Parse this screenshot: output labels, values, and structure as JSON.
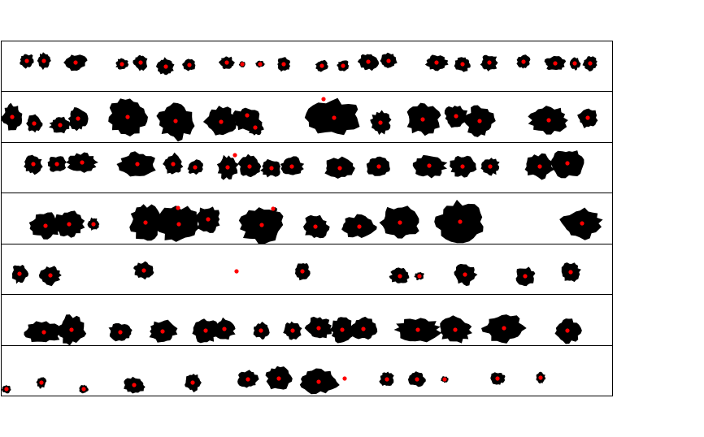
{
  "colors": {
    "blob": "#000000",
    "centroid": "#ff0000",
    "border": "#000000",
    "background": "#ffffff"
  },
  "rows": [
    {
      "row": 1,
      "blob_count": 22,
      "dot_count": 22
    },
    {
      "row": 2,
      "blob_count": 16,
      "dot_count": 18
    },
    {
      "row": 3,
      "blob_count": 17,
      "dot_count": 18
    },
    {
      "row": 4,
      "blob_count": 13,
      "dot_count": 15
    },
    {
      "row": 5,
      "blob_count": 10,
      "dot_count": 12
    },
    {
      "row": 6,
      "blob_count": 16,
      "dot_count": 17
    },
    {
      "row": 7,
      "blob_count": 14,
      "dot_count": 15
    }
  ]
}
